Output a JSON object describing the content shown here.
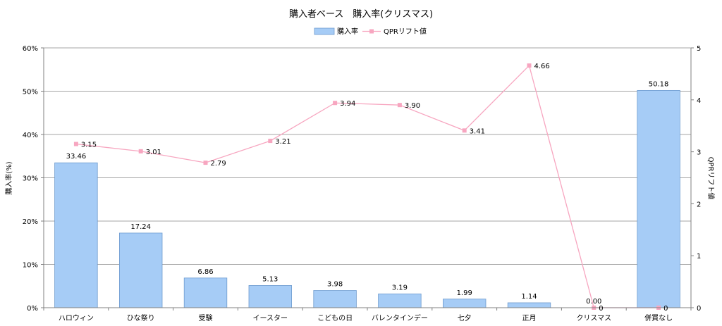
{
  "chart_data": {
    "type": "bar",
    "title": "購入者ベース　購入率(クリスマス)",
    "legend": {
      "position": "top",
      "bar_label": "購入率",
      "line_label": "QPRリフト値"
    },
    "ylabel": "購入率(%)",
    "y2label": "QPRリフト値",
    "ylim": [
      0,
      60
    ],
    "y2lim": [
      0,
      5
    ],
    "yticks": [
      "0%",
      "10%",
      "20%",
      "30%",
      "40%",
      "50%",
      "60%"
    ],
    "y2ticks": [
      "0",
      "1",
      "2",
      "3",
      "4",
      "5"
    ],
    "grid": true,
    "categories": [
      "ハロウィン",
      "ひな祭り",
      "受験",
      "イースター",
      "こどもの日",
      "バレンタインデー",
      "七夕",
      "正月",
      "クリスマス",
      "併買なし"
    ],
    "series": [
      {
        "name": "購入率",
        "type": "bar",
        "axis": "left",
        "color": "#a6ccf6",
        "values": [
          33.46,
          17.24,
          6.86,
          5.13,
          3.98,
          3.19,
          1.99,
          1.14,
          0.0,
          50.18
        ],
        "labels": [
          "33.46",
          "17.24",
          "6.86",
          "5.13",
          "3.98",
          "3.19",
          "1.99",
          "1.14",
          "0.00",
          "50.18"
        ]
      },
      {
        "name": "QPRリフト値",
        "type": "line",
        "axis": "right",
        "color": "#f7a6c0",
        "values": [
          3.15,
          3.01,
          2.79,
          3.21,
          3.94,
          3.9,
          3.41,
          4.66,
          0,
          0
        ],
        "labels": [
          "3.15",
          "3.01",
          "2.79",
          "3.21",
          "3.94",
          "3.90",
          "3.41",
          "4.66",
          "0",
          "0"
        ]
      }
    ]
  }
}
